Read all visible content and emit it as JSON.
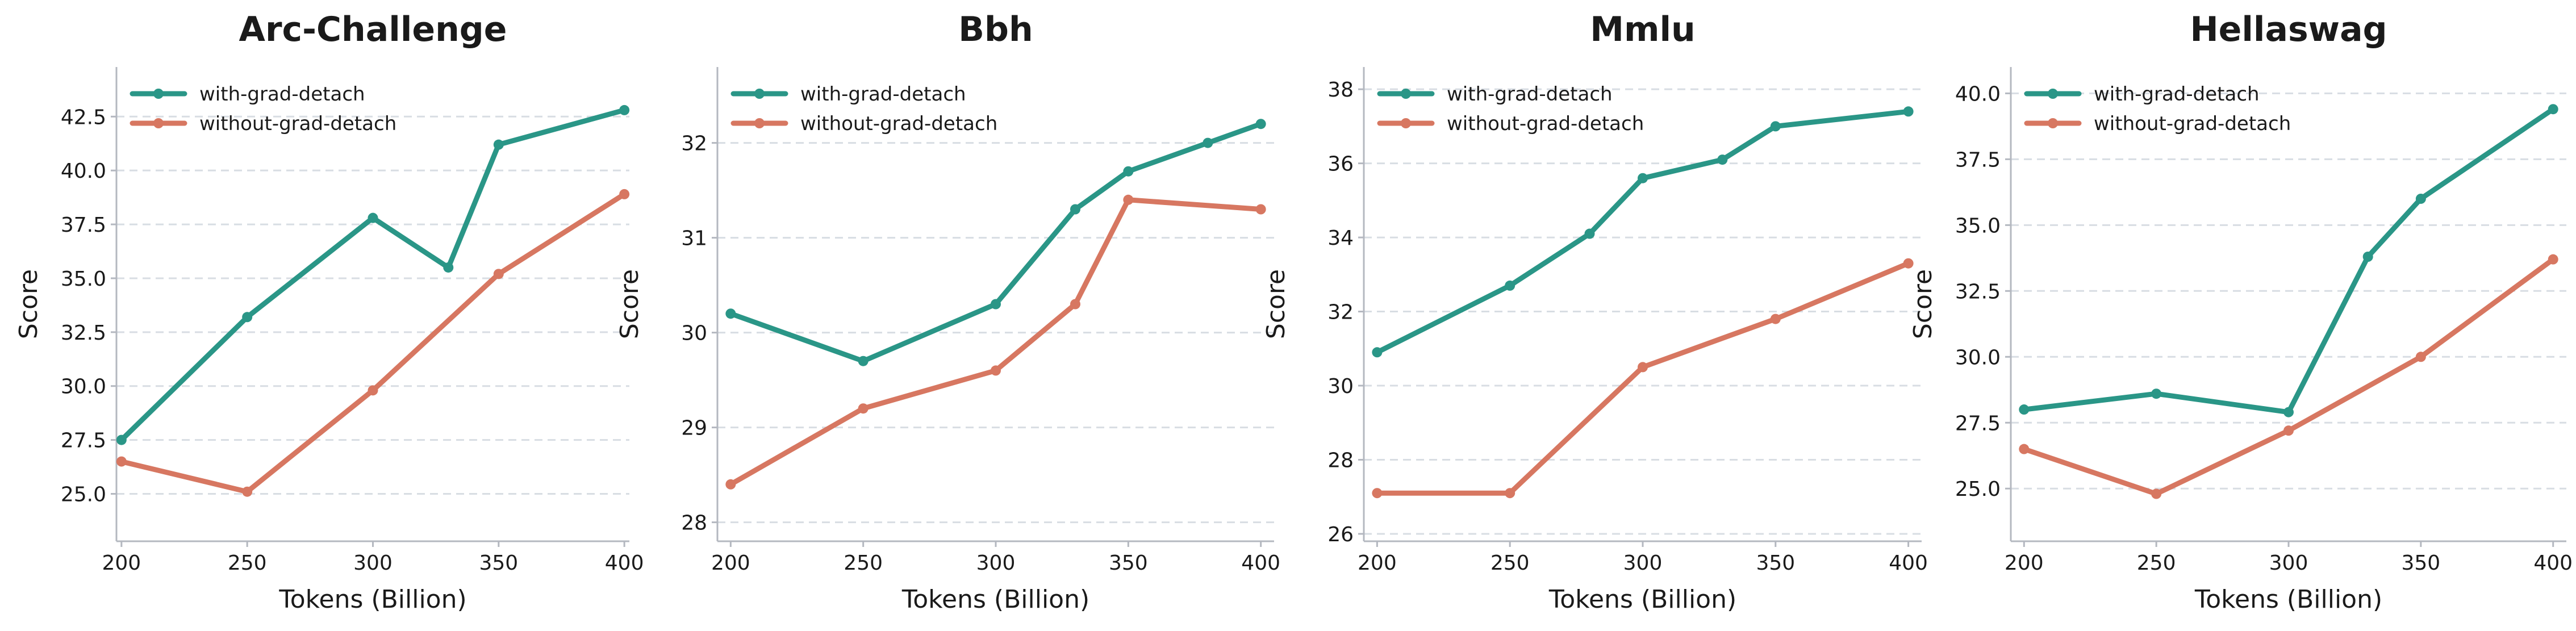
{
  "colors": {
    "with": "#2a9687",
    "without": "#d77761",
    "axis": "#b4b8c0",
    "grid": "#d8dde3",
    "text": "#1a1a1a"
  },
  "chart_data": [
    {
      "type": "line",
      "title": "Arc-Challenge",
      "xlabel": "Tokens (Billion)",
      "ylabel": "Score",
      "xlim": [
        198,
        402
      ],
      "ylim": [
        22.8,
        44.8
      ],
      "xticks": [
        200,
        250,
        300,
        350,
        400
      ],
      "yticks": [
        25.0,
        27.5,
        30.0,
        32.5,
        35.0,
        37.5,
        40.0,
        42.5
      ],
      "ytick_labels": [
        "25.0",
        "27.5",
        "30.0",
        "32.5",
        "35.0",
        "37.5",
        "40.0",
        "42.5"
      ],
      "grid": "horizontal dashed",
      "legend_position": "top-left",
      "series": [
        {
          "name": "with-grad-detach",
          "x": [
            200,
            250,
            300,
            330,
            350,
            400
          ],
          "y": [
            27.5,
            33.2,
            37.8,
            35.5,
            41.2,
            42.8
          ]
        },
        {
          "name": "without-grad-detach",
          "x": [
            200,
            250,
            300,
            350,
            400
          ],
          "y": [
            26.5,
            25.1,
            29.8,
            35.2,
            38.9
          ]
        }
      ]
    },
    {
      "type": "line",
      "title": "Bbh",
      "xlabel": "Tokens (Billion)",
      "ylabel": "Score",
      "xlim": [
        195,
        405
      ],
      "ylim": [
        27.8,
        32.8
      ],
      "xticks": [
        200,
        250,
        300,
        350,
        400
      ],
      "yticks": [
        28,
        29,
        30,
        31,
        32
      ],
      "ytick_labels": [
        "28",
        "29",
        "30",
        "31",
        "32"
      ],
      "grid": "horizontal dashed",
      "legend_position": "top-left",
      "series": [
        {
          "name": "with-grad-detach",
          "x": [
            200,
            250,
            300,
            330,
            350,
            380,
            400
          ],
          "y": [
            30.2,
            29.7,
            30.3,
            31.3,
            31.7,
            32.0,
            32.2
          ]
        },
        {
          "name": "without-grad-detach",
          "x": [
            200,
            250,
            300,
            330,
            350,
            400
          ],
          "y": [
            28.4,
            29.2,
            29.6,
            30.3,
            31.4,
            31.3
          ]
        }
      ]
    },
    {
      "type": "line",
      "title": "Mmlu",
      "xlabel": "Tokens (Billion)",
      "ylabel": "Score",
      "xlim": [
        195,
        405
      ],
      "ylim": [
        25.8,
        38.6
      ],
      "xticks": [
        200,
        250,
        300,
        350,
        400
      ],
      "yticks": [
        26,
        28,
        30,
        32,
        34,
        36,
        38
      ],
      "ytick_labels": [
        "26",
        "28",
        "30",
        "32",
        "34",
        "36",
        "38"
      ],
      "grid": "horizontal dashed",
      "legend_position": "top-left",
      "series": [
        {
          "name": "with-grad-detach",
          "x": [
            200,
            250,
            280,
            300,
            330,
            350,
            400
          ],
          "y": [
            30.9,
            32.7,
            34.1,
            35.6,
            36.1,
            37.0,
            37.4
          ]
        },
        {
          "name": "without-grad-detach",
          "x": [
            200,
            250,
            300,
            350,
            400
          ],
          "y": [
            27.1,
            27.1,
            30.5,
            31.8,
            33.3
          ]
        }
      ]
    },
    {
      "type": "line",
      "title": "Hellaswag",
      "xlabel": "Tokens (Billion)",
      "ylabel": "Score",
      "xlim": [
        195,
        405
      ],
      "ylim": [
        23.0,
        41.0
      ],
      "xticks": [
        200,
        250,
        300,
        350,
        400
      ],
      "yticks": [
        25.0,
        27.5,
        30.0,
        32.5,
        35.0,
        37.5,
        40.0
      ],
      "ytick_labels": [
        "25.0",
        "27.5",
        "30.0",
        "32.5",
        "35.0",
        "37.5",
        "40.0"
      ],
      "grid": "horizontal dashed",
      "legend_position": "top-left",
      "series": [
        {
          "name": "with-grad-detach",
          "x": [
            200,
            250,
            300,
            330,
            350,
            400
          ],
          "y": [
            28.0,
            28.6,
            27.9,
            33.8,
            36.0,
            39.4
          ]
        },
        {
          "name": "without-grad-detach",
          "x": [
            200,
            250,
            300,
            350,
            400
          ],
          "y": [
            26.5,
            24.8,
            27.2,
            30.0,
            33.7
          ]
        }
      ]
    }
  ]
}
